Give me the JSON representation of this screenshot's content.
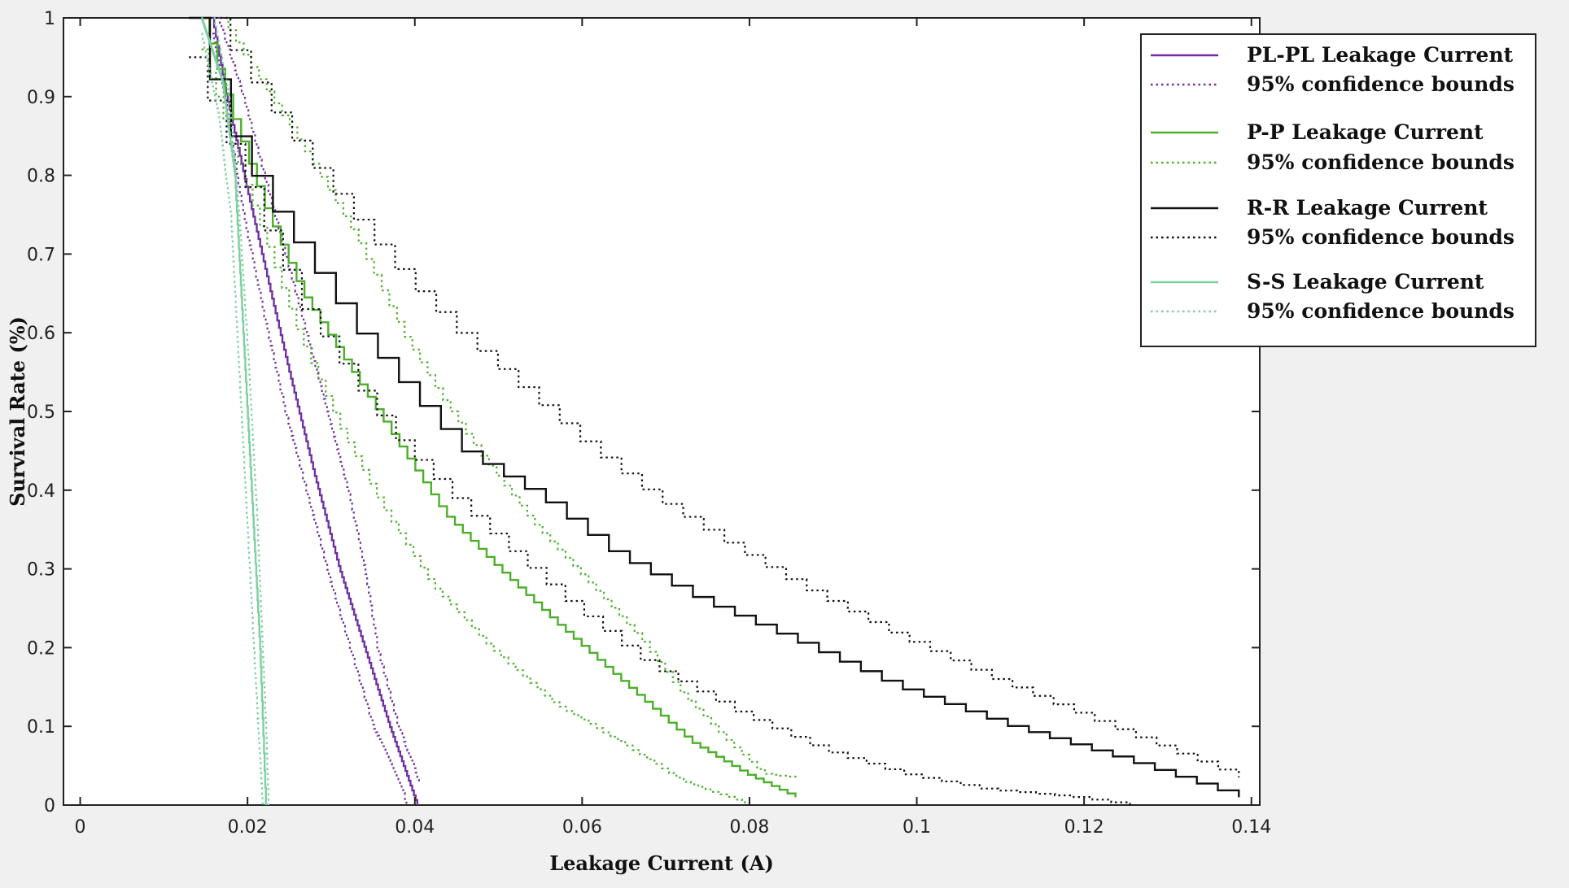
{
  "chart_data": {
    "type": "line",
    "xlabel": "Leakage Current (A)",
    "ylabel": "Survival Rate (%)",
    "xlim": [
      -0.002,
      0.141
    ],
    "ylim": [
      0,
      1
    ],
    "xticks": [
      0,
      0.02,
      0.04,
      0.06,
      0.08,
      0.1,
      0.12,
      0.14
    ],
    "xtick_labels": [
      "0",
      "0.02",
      "0.04",
      "0.06",
      "0.08",
      "0.1",
      "0.12",
      "0.14"
    ],
    "yticks": [
      0,
      0.1,
      0.2,
      0.3,
      0.4,
      0.5,
      0.6,
      0.7,
      0.8,
      0.9,
      1
    ],
    "ytick_labels": [
      "0",
      "0.1",
      "0.2",
      "0.3",
      "0.4",
      "0.5",
      "0.6",
      "0.7",
      "0.8",
      "0.9",
      "1"
    ],
    "grid": false,
    "legend_position": "top-right",
    "series": [
      {
        "name": "PL-PL Leakage Current",
        "color": "#7030a0",
        "style": "solid",
        "steps": 120,
        "points": [
          [
            0.0158,
            1
          ],
          [
            0.0175,
            0.9
          ],
          [
            0.02,
            0.78
          ],
          [
            0.0228,
            0.65
          ],
          [
            0.025,
            0.55
          ],
          [
            0.028,
            0.42
          ],
          [
            0.031,
            0.3
          ],
          [
            0.034,
            0.2
          ],
          [
            0.037,
            0.1
          ],
          [
            0.0403,
            0
          ]
        ]
      },
      {
        "name": "95% confidence bounds",
        "color": "#7030a0",
        "style": "dotted",
        "steps": 120,
        "points": [
          [
            0.0165,
            1
          ],
          [
            0.0195,
            0.9
          ],
          [
            0.022,
            0.8
          ],
          [
            0.0245,
            0.7
          ],
          [
            0.027,
            0.6
          ],
          [
            0.0295,
            0.5
          ],
          [
            0.032,
            0.4
          ],
          [
            0.034,
            0.3
          ],
          [
            0.0355,
            0.2
          ],
          [
            0.038,
            0.1
          ],
          [
            0.0405,
            0.03
          ]
        ]
      },
      {
        "name": "",
        "color": "#7030a0",
        "style": "dotted",
        "steps": 120,
        "points": [
          [
            0.0158,
            0.98
          ],
          [
            0.0175,
            0.88
          ],
          [
            0.0195,
            0.75
          ],
          [
            0.022,
            0.62
          ],
          [
            0.0245,
            0.5
          ],
          [
            0.0275,
            0.38
          ],
          [
            0.03,
            0.28
          ],
          [
            0.0325,
            0.19
          ],
          [
            0.035,
            0.1
          ],
          [
            0.0385,
            0.02
          ],
          [
            0.039,
            0
          ]
        ]
      },
      {
        "name": "P-P Leakage Current",
        "color": "#4caf2a",
        "style": "solid",
        "steps": 75,
        "points": [
          [
            0.0145,
            1
          ],
          [
            0.018,
            0.88
          ],
          [
            0.022,
            0.76
          ],
          [
            0.0265,
            0.65
          ],
          [
            0.0325,
            0.55
          ],
          [
            0.0385,
            0.45
          ],
          [
            0.0435,
            0.37
          ],
          [
            0.05,
            0.3
          ],
          [
            0.057,
            0.23
          ],
          [
            0.0655,
            0.15
          ],
          [
            0.073,
            0.08
          ],
          [
            0.0795,
            0.04
          ],
          [
            0.0855,
            0.01
          ]
        ]
      },
      {
        "name": "95% confidence bounds",
        "color": "#4caf2a",
        "style": "dotted",
        "steps": 75,
        "points": [
          [
            0.0168,
            1
          ],
          [
            0.0215,
            0.92
          ],
          [
            0.0275,
            0.82
          ],
          [
            0.033,
            0.72
          ],
          [
            0.0385,
            0.6
          ],
          [
            0.043,
            0.52
          ],
          [
            0.0475,
            0.45
          ],
          [
            0.054,
            0.36
          ],
          [
            0.061,
            0.28
          ],
          [
            0.067,
            0.21
          ],
          [
            0.072,
            0.14
          ],
          [
            0.0775,
            0.08
          ],
          [
            0.0815,
            0.04
          ],
          [
            0.0855,
            0.035
          ]
        ]
      },
      {
        "name": "",
        "color": "#4caf2a",
        "style": "dotted",
        "steps": 75,
        "points": [
          [
            0.0145,
            0.96
          ],
          [
            0.018,
            0.84
          ],
          [
            0.022,
            0.72
          ],
          [
            0.026,
            0.6
          ],
          [
            0.031,
            0.48
          ],
          [
            0.036,
            0.38
          ],
          [
            0.042,
            0.28
          ],
          [
            0.049,
            0.2
          ],
          [
            0.0565,
            0.13
          ],
          [
            0.0645,
            0.08
          ],
          [
            0.072,
            0.03
          ],
          [
            0.0775,
            0.01
          ],
          [
            0.08,
            0
          ]
        ]
      },
      {
        "name": "R-R Leakage Current",
        "color": "#111111",
        "style": "solid",
        "steps": 50,
        "points": [
          [
            0.013,
            1
          ],
          [
            0.0175,
            0.86
          ],
          [
            0.022,
            0.77
          ],
          [
            0.0265,
            0.7
          ],
          [
            0.033,
            0.6
          ],
          [
            0.0395,
            0.52
          ],
          [
            0.0455,
            0.45
          ],
          [
            0.055,
            0.39
          ],
          [
            0.0635,
            0.32
          ],
          [
            0.074,
            0.26
          ],
          [
            0.085,
            0.21
          ],
          [
            0.0975,
            0.15
          ],
          [
            0.111,
            0.1
          ],
          [
            0.124,
            0.06
          ],
          [
            0.1385,
            0.01
          ]
        ]
      },
      {
        "name": "95% confidence bounds",
        "color": "#111111",
        "style": "dotted",
        "steps": 50,
        "points": [
          [
            0.0155,
            1
          ],
          [
            0.0215,
            0.9
          ],
          [
            0.027,
            0.82
          ],
          [
            0.033,
            0.74
          ],
          [
            0.0385,
            0.67
          ],
          [
            0.045,
            0.6
          ],
          [
            0.0525,
            0.53
          ],
          [
            0.06,
            0.46
          ],
          [
            0.0685,
            0.39
          ],
          [
            0.0775,
            0.33
          ],
          [
            0.0855,
            0.28
          ],
          [
            0.0965,
            0.22
          ],
          [
            0.109,
            0.16
          ],
          [
            0.1205,
            0.11
          ],
          [
            0.13,
            0.07
          ],
          [
            0.1385,
            0.035
          ]
        ]
      },
      {
        "name": "",
        "color": "#111111",
        "style": "dotted",
        "steps": 50,
        "points": [
          [
            0.013,
            0.95
          ],
          [
            0.0175,
            0.84
          ],
          [
            0.022,
            0.73
          ],
          [
            0.0265,
            0.63
          ],
          [
            0.033,
            0.53
          ],
          [
            0.038,
            0.46
          ],
          [
            0.0445,
            0.39
          ],
          [
            0.0515,
            0.32
          ],
          [
            0.059,
            0.25
          ],
          [
            0.0675,
            0.18
          ],
          [
            0.078,
            0.12
          ],
          [
            0.0885,
            0.07
          ],
          [
            0.098,
            0.04
          ],
          [
            0.108,
            0.02
          ],
          [
            0.119,
            0.01
          ],
          [
            0.1255,
            0
          ]
        ]
      },
      {
        "name": "S-S Leakage Current",
        "color": "#7dcfa0",
        "style": "solid",
        "steps": 100,
        "points": [
          [
            0.0145,
            1
          ],
          [
            0.017,
            0.92
          ],
          [
            0.0185,
            0.8
          ],
          [
            0.0195,
            0.6
          ],
          [
            0.0205,
            0.4
          ],
          [
            0.0215,
            0.2
          ],
          [
            0.0222,
            0
          ]
        ]
      },
      {
        "name": "95% confidence bounds",
        "color": "#7dcfa0",
        "style": "dotted",
        "steps": 100,
        "points": [
          [
            0.016,
            1
          ],
          [
            0.0178,
            0.9
          ],
          [
            0.019,
            0.75
          ],
          [
            0.0202,
            0.55
          ],
          [
            0.0212,
            0.35
          ],
          [
            0.0222,
            0.1
          ],
          [
            0.0225,
            0
          ]
        ]
      },
      {
        "name": "",
        "color": "#7dcfa0",
        "style": "dotted",
        "steps": 100,
        "points": [
          [
            0.0145,
            0.98
          ],
          [
            0.0165,
            0.88
          ],
          [
            0.018,
            0.75
          ],
          [
            0.019,
            0.55
          ],
          [
            0.02,
            0.35
          ],
          [
            0.021,
            0.15
          ],
          [
            0.0218,
            0
          ]
        ]
      }
    ],
    "legend": [
      {
        "label": "PL-PL Leakage Current",
        "color": "#7030a0",
        "style": "solid"
      },
      {
        "label": "95% confidence bounds",
        "color": "#7030a0",
        "style": "dotted"
      },
      {
        "label": "P-P Leakage Current",
        "color": "#4caf2a",
        "style": "solid"
      },
      {
        "label": "95% confidence bounds",
        "color": "#4caf2a",
        "style": "dotted"
      },
      {
        "label": "R-R Leakage Current",
        "color": "#111111",
        "style": "solid"
      },
      {
        "label": "95% confidence bounds",
        "color": "#111111",
        "style": "dotted"
      },
      {
        "label": "S-S Leakage Current",
        "color": "#7dcfa0",
        "style": "solid"
      },
      {
        "label": "95% confidence bounds",
        "color": "#7dcfa0",
        "style": "dotted"
      }
    ]
  },
  "colors": {
    "background": "#f0f0f0",
    "plot_area": "#ffffff",
    "axis": "#222222"
  }
}
